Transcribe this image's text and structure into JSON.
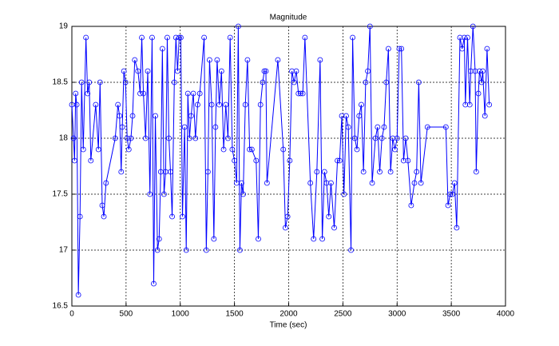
{
  "chart_data": {
    "type": "line",
    "title": "Magnitude",
    "x_label": "Time (sec)",
    "x": [
      0,
      15,
      25,
      35,
      45,
      60,
      75,
      90,
      105,
      130,
      145,
      160,
      175,
      220,
      245,
      260,
      280,
      295,
      315,
      400,
      425,
      440,
      455,
      465,
      480,
      495,
      510,
      525,
      545,
      560,
      580,
      610,
      630,
      645,
      660,
      680,
      700,
      720,
      740,
      755,
      770,
      790,
      805,
      820,
      835,
      850,
      865,
      880,
      895,
      910,
      925,
      945,
      960,
      975,
      990,
      1005,
      1020,
      1040,
      1055,
      1070,
      1085,
      1100,
      1120,
      1140,
      1160,
      1180,
      1220,
      1240,
      1255,
      1270,
      1290,
      1310,
      1325,
      1340,
      1360,
      1380,
      1400,
      1420,
      1440,
      1460,
      1480,
      1500,
      1520,
      1535,
      1550,
      1565,
      1580,
      1600,
      1620,
      1640,
      1660,
      1700,
      1720,
      1740,
      1760,
      1775,
      1790,
      1800,
      1900,
      1950,
      1970,
      1990,
      2010,
      2030,
      2050,
      2070,
      2090,
      2110,
      2130,
      2150,
      2200,
      2230,
      2260,
      2290,
      2310,
      2330,
      2350,
      2370,
      2390,
      2420,
      2450,
      2470,
      2490,
      2510,
      2530,
      2550,
      2575,
      2590,
      2610,
      2630,
      2650,
      2670,
      2690,
      2710,
      2730,
      2750,
      2770,
      2800,
      2820,
      2840,
      2860,
      2880,
      2900,
      2920,
      2940,
      2960,
      2980,
      3000,
      3020,
      3040,
      3060,
      3080,
      3100,
      3130,
      3160,
      3180,
      3200,
      3220,
      3280,
      3450,
      3470,
      3490,
      3510,
      3530,
      3550,
      3580,
      3600,
      3620,
      3630,
      3650,
      3670,
      3680,
      3700,
      3720,
      3730,
      3750,
      3760,
      3780,
      3790,
      3810,
      3830,
      3850
    ],
    "values": [
      18.3,
      18.0,
      17.8,
      18.4,
      18.3,
      16.6,
      17.3,
      18.5,
      17.9,
      18.9,
      18.4,
      18.5,
      17.8,
      18.3,
      17.9,
      18.5,
      17.4,
      17.3,
      17.6,
      18.0,
      18.3,
      18.2,
      17.7,
      18.1,
      18.6,
      18.5,
      18.0,
      17.9,
      18.0,
      18.2,
      18.7,
      18.6,
      18.4,
      18.9,
      18.4,
      18.0,
      18.6,
      17.5,
      18.9,
      16.7,
      18.2,
      17.0,
      17.1,
      17.7,
      18.8,
      17.5,
      17.7,
      18.9,
      18.0,
      17.7,
      17.3,
      18.5,
      18.9,
      18.6,
      18.9,
      18.9,
      17.3,
      18.1,
      17.0,
      18.4,
      18.0,
      18.2,
      18.4,
      18.0,
      18.3,
      18.4,
      18.9,
      17.0,
      17.7,
      18.7,
      18.3,
      17.1,
      18.1,
      18.7,
      18.3,
      18.6,
      17.9,
      18.3,
      18.0,
      18.9,
      17.9,
      17.8,
      17.6,
      19.0,
      17.0,
      17.6,
      17.5,
      18.3,
      18.7,
      17.9,
      17.9,
      17.8,
      17.1,
      18.3,
      18.5,
      18.6,
      18.6,
      17.6,
      18.7,
      17.9,
      17.2,
      17.3,
      17.8,
      18.6,
      18.5,
      18.6,
      18.4,
      18.4,
      18.4,
      18.9,
      17.6,
      17.1,
      17.7,
      18.7,
      17.1,
      17.7,
      17.6,
      17.3,
      17.6,
      17.2,
      17.8,
      17.8,
      18.2,
      17.5,
      18.2,
      18.1,
      17.0,
      18.9,
      18.0,
      17.9,
      18.2,
      18.3,
      17.7,
      18.5,
      18.6,
      19.0,
      17.6,
      18.0,
      18.1,
      17.7,
      18.0,
      18.1,
      18.5,
      18.8,
      17.7,
      18.0,
      17.9,
      18.0,
      18.8,
      18.8,
      17.8,
      18.0,
      17.8,
      17.4,
      17.6,
      17.7,
      18.5,
      17.6,
      18.1,
      18.1,
      17.4,
      17.5,
      17.5,
      17.6,
      17.2,
      18.9,
      18.8,
      18.9,
      18.3,
      18.9,
      18.3,
      18.6,
      19.0,
      18.6,
      17.7,
      18.4,
      18.6,
      18.5,
      18.6,
      18.2,
      18.8,
      18.3
    ],
    "color": "#0000ff",
    "xlim": [
      0,
      4000
    ],
    "xticks": [
      0,
      500,
      1000,
      1500,
      2000,
      2500,
      3000,
      3500,
      4000
    ],
    "ylim": [
      16.5,
      19
    ],
    "yticks": [
      16.5,
      17,
      17.5,
      18,
      18.5,
      19
    ],
    "grid": true
  }
}
